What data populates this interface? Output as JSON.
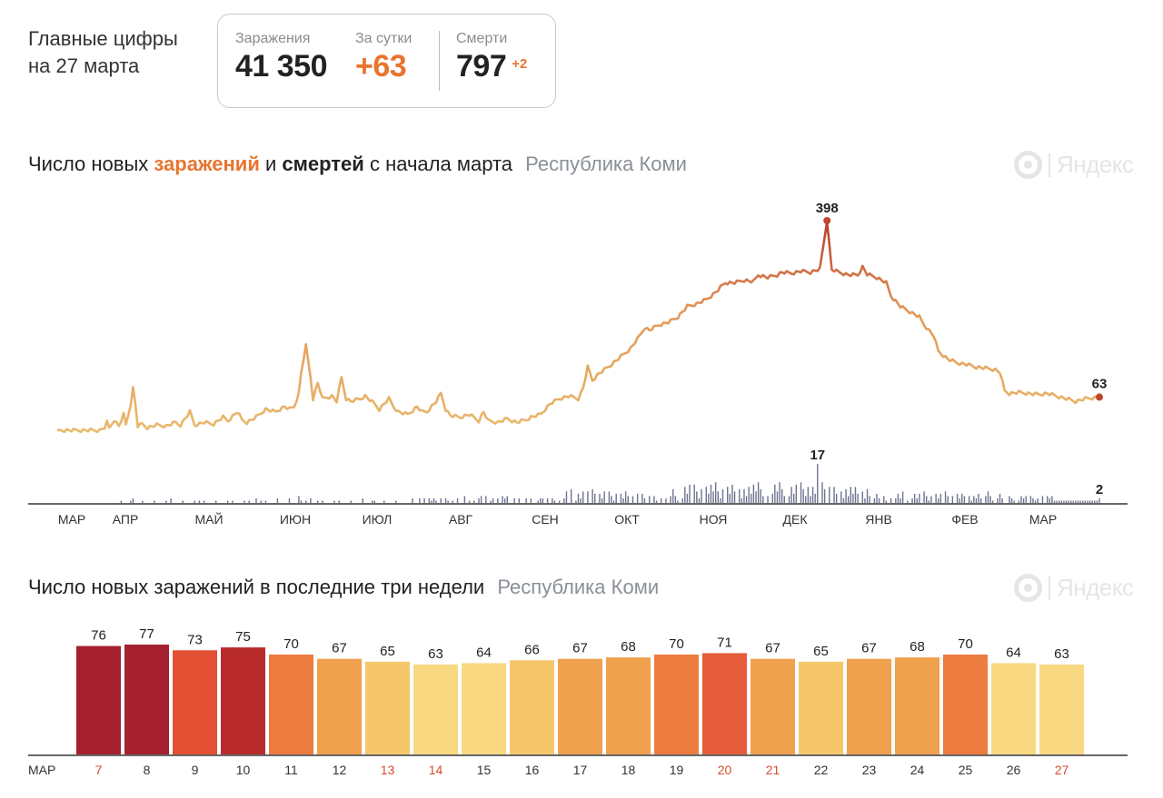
{
  "header": {
    "title_line1": "Главные цифры",
    "title_line2": "на 27 марта",
    "infections_label": "Заражения",
    "infections_value": "41 350",
    "daily_label": "За сутки",
    "daily_value": "+63",
    "deaths_label": "Смерти",
    "deaths_value": "797",
    "deaths_delta": "+2"
  },
  "colors": {
    "orange": "#e8742e",
    "line_low": "#e8b96c",
    "line_high": "#c2452f",
    "deaths_bars": "#6f7390",
    "axis": "#333333",
    "red_text": "#d84a2f"
  },
  "logo": {
    "text": "Яндекс"
  },
  "chart_data": [
    {
      "type": "line",
      "title": {
        "prefix": "Число новых",
        "infections": "заражений",
        "middle": "и",
        "deaths": "смертей",
        "suffix": "с начала марта",
        "region": "Республика Коми"
      },
      "months": [
        "МАР",
        "АПР",
        "МАЙ",
        "ИЮН",
        "ИЮЛ",
        "АВГ",
        "СЕН",
        "ОКТ",
        "НОЯ",
        "ДЕК",
        "ЯНВ",
        "ФЕВ",
        "МАР"
      ],
      "series": [
        {
          "name": "Заражения",
          "ylim": [
            0,
            420
          ],
          "peak_label": "398",
          "last_label": "63",
          "keypoints": [
            [
              0,
              0
            ],
            [
              18,
              0
            ],
            [
              20,
              5
            ],
            [
              21,
              15
            ],
            [
              22,
              4
            ],
            [
              24,
              20
            ],
            [
              26,
              8
            ],
            [
              28,
              30
            ],
            [
              29,
              10
            ],
            [
              31,
              50
            ],
            [
              32,
              80
            ],
            [
              33,
              50
            ],
            [
              34,
              8
            ],
            [
              36,
              12
            ],
            [
              38,
              5
            ],
            [
              42,
              10
            ],
            [
              46,
              8
            ],
            [
              50,
              15
            ],
            [
              52,
              10
            ],
            [
              56,
              35
            ],
            [
              58,
              10
            ],
            [
              62,
              15
            ],
            [
              66,
              12
            ],
            [
              70,
              25
            ],
            [
              72,
              18
            ],
            [
              76,
              35
            ],
            [
              78,
              20
            ],
            [
              80,
              15
            ],
            [
              84,
              25
            ],
            [
              88,
              40
            ],
            [
              92,
              35
            ],
            [
              96,
              45
            ],
            [
              98,
              40
            ],
            [
              100,
              45
            ],
            [
              102,
              70
            ],
            [
              103,
              110
            ],
            [
              105,
              160
            ],
            [
              106,
              130
            ],
            [
              107,
              100
            ],
            [
              108,
              60
            ],
            [
              110,
              90
            ],
            [
              112,
              60
            ],
            [
              116,
              65
            ],
            [
              118,
              55
            ],
            [
              120,
              100
            ],
            [
              122,
              60
            ],
            [
              124,
              55
            ],
            [
              128,
              60
            ],
            [
              130,
              65
            ],
            [
              134,
              50
            ],
            [
              136,
              40
            ],
            [
              140,
              60
            ],
            [
              142,
              45
            ],
            [
              144,
              35
            ],
            [
              148,
              30
            ],
            [
              152,
              45
            ],
            [
              154,
              35
            ],
            [
              156,
              35
            ],
            [
              160,
              55
            ],
            [
              162,
              70
            ],
            [
              164,
              40
            ],
            [
              166,
              28
            ],
            [
              170,
              25
            ],
            [
              174,
              30
            ],
            [
              178,
              18
            ],
            [
              180,
              35
            ],
            [
              182,
              18
            ],
            [
              186,
              15
            ],
            [
              190,
              22
            ],
            [
              194,
              15
            ],
            [
              198,
              20
            ],
            [
              200,
              25
            ],
            [
              204,
              30
            ],
            [
              206,
              40
            ],
            [
              208,
              50
            ],
            [
              212,
              60
            ],
            [
              216,
              65
            ],
            [
              220,
              60
            ],
            [
              222,
              80
            ],
            [
              224,
              120
            ],
            [
              226,
              95
            ],
            [
              228,
              105
            ],
            [
              234,
              125
            ],
            [
              238,
              140
            ],
            [
              242,
              155
            ],
            [
              246,
              180
            ],
            [
              248,
              195
            ],
            [
              250,
              190
            ],
            [
              254,
              200
            ],
            [
              258,
              205
            ],
            [
              262,
              215
            ],
            [
              266,
              235
            ],
            [
              270,
              240
            ],
            [
              274,
              248
            ],
            [
              278,
              262
            ],
            [
              282,
              280
            ],
            [
              286,
              280
            ],
            [
              290,
              285
            ],
            [
              294,
              282
            ],
            [
              296,
              295
            ],
            [
              300,
              290
            ],
            [
              304,
              295
            ],
            [
              306,
              300
            ],
            [
              310,
              298
            ],
            [
              314,
              302
            ],
            [
              318,
              300
            ],
            [
              322,
              306
            ],
            [
              325,
              398
            ],
            [
              327,
              305
            ],
            [
              330,
              300
            ],
            [
              334,
              295
            ],
            [
              338,
              295
            ],
            [
              340,
              310
            ],
            [
              342,
              296
            ],
            [
              346,
              290
            ],
            [
              350,
              280
            ],
            [
              352,
              255
            ],
            [
              356,
              235
            ],
            [
              360,
              225
            ],
            [
              364,
              215
            ],
            [
              366,
              200
            ],
            [
              370,
              180
            ],
            [
              372,
              150
            ],
            [
              376,
              135
            ],
            [
              380,
              128
            ],
            [
              384,
              125
            ],
            [
              388,
              120
            ],
            [
              392,
              118
            ],
            [
              396,
              115
            ],
            [
              398,
              110
            ],
            [
              400,
              75
            ],
            [
              402,
              70
            ],
            [
              406,
              72
            ],
            [
              410,
              70
            ],
            [
              414,
              68
            ],
            [
              418,
              70
            ],
            [
              422,
              65
            ],
            [
              426,
              60
            ],
            [
              430,
              55
            ],
            [
              434,
              60
            ],
            [
              438,
              62
            ],
            [
              440,
              63
            ]
          ]
        },
        {
          "name": "Смерти",
          "ylim": [
            0,
            17
          ],
          "peak_label": "17",
          "last_label": "2"
        }
      ]
    },
    {
      "type": "bar",
      "title": "Число новых заражений в последние три недели",
      "region": "Республика Коми",
      "month_label": "МАР",
      "categories": [
        "7",
        "8",
        "9",
        "10",
        "11",
        "12",
        "13",
        "14",
        "15",
        "16",
        "17",
        "18",
        "19",
        "20",
        "21",
        "22",
        "23",
        "24",
        "25",
        "26",
        "27"
      ],
      "values": [
        76,
        77,
        73,
        75,
        70,
        67,
        65,
        63,
        64,
        66,
        67,
        68,
        70,
        71,
        67,
        65,
        67,
        68,
        70,
        64,
        63
      ],
      "weekend": [
        true,
        false,
        false,
        false,
        false,
        false,
        true,
        true,
        false,
        false,
        false,
        false,
        false,
        true,
        true,
        false,
        false,
        false,
        false,
        false,
        true
      ],
      "bar_colors": [
        "#a5212f",
        "#a5212f",
        "#e24f33",
        "#b82a2b",
        "#ec7b40",
        "#f0a14e",
        "#f6c66a",
        "#f8d982",
        "#f8d982",
        "#f6c66a",
        "#f0a14e",
        "#f0a14e",
        "#ec7b40",
        "#e45c3a",
        "#f0a14e",
        "#f6c66a",
        "#f0a14e",
        "#f0a14e",
        "#ec7b40",
        "#f8d982",
        "#f8d982"
      ],
      "ylim": [
        0,
        77
      ]
    }
  ]
}
